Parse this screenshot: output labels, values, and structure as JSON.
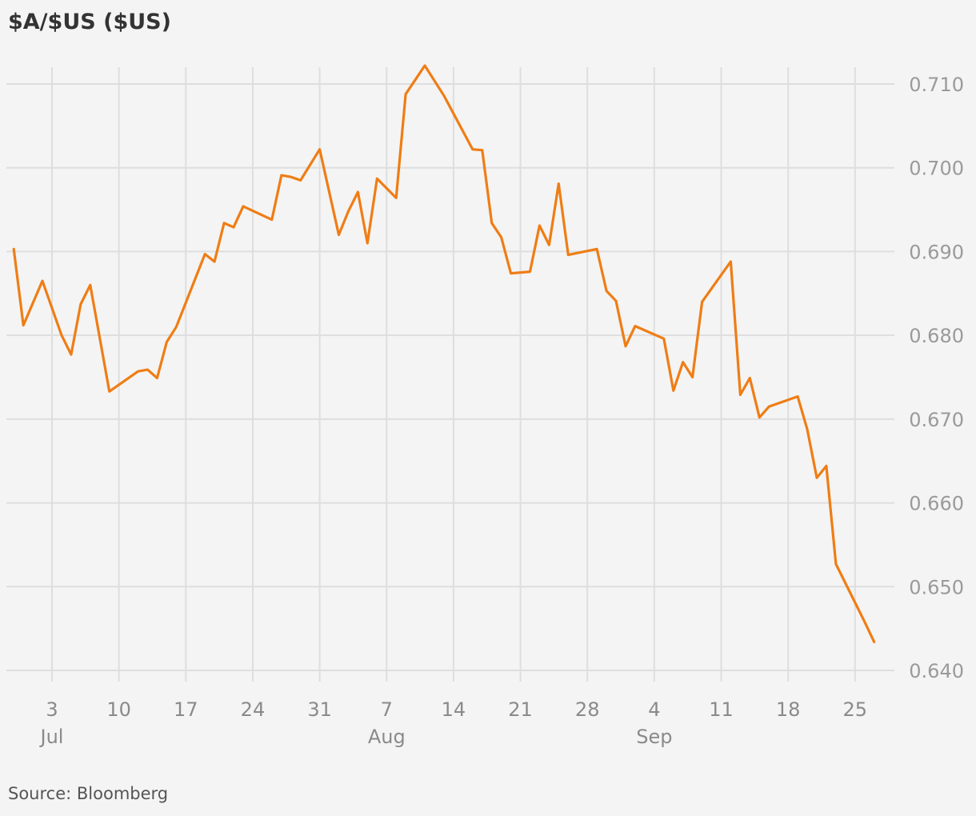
{
  "title": "$A/$US ($US)",
  "source": "Source: Bloomberg",
  "colors": {
    "line": "#ef7d15",
    "grid": "#dedede",
    "background": "#f4f4f4"
  },
  "chart_data": {
    "type": "line",
    "title": "$A/$US ($US)",
    "xlabel": "",
    "ylabel": "",
    "grid": true,
    "ylim": [
      0.638,
      0.712
    ],
    "xlim": [
      "2018-06-29",
      "2018-09-27"
    ],
    "y_ticks": [
      {
        "value": 0.64,
        "label": "0.640"
      },
      {
        "value": 0.65,
        "label": "0.650"
      },
      {
        "value": 0.66,
        "label": "0.660"
      },
      {
        "value": 0.67,
        "label": "0.670"
      },
      {
        "value": 0.68,
        "label": "0.680"
      },
      {
        "value": 0.69,
        "label": "0.690"
      },
      {
        "value": 0.7,
        "label": "0.700"
      },
      {
        "value": 0.71,
        "label": "0.710"
      }
    ],
    "x_ticks": [
      {
        "date": "2018-07-03",
        "label": "3",
        "month": "Jul"
      },
      {
        "date": "2018-07-10",
        "label": "10"
      },
      {
        "date": "2018-07-17",
        "label": "17"
      },
      {
        "date": "2018-07-24",
        "label": "24"
      },
      {
        "date": "2018-07-31",
        "label": "31"
      },
      {
        "date": "2018-08-07",
        "label": "7",
        "month": "Aug"
      },
      {
        "date": "2018-08-14",
        "label": "14"
      },
      {
        "date": "2018-08-21",
        "label": "21"
      },
      {
        "date": "2018-08-28",
        "label": "28"
      },
      {
        "date": "2018-09-04",
        "label": "4",
        "month": "Sep"
      },
      {
        "date": "2018-09-11",
        "label": "11"
      },
      {
        "date": "2018-09-18",
        "label": "18"
      },
      {
        "date": "2018-09-25",
        "label": "25"
      }
    ],
    "series": [
      {
        "x": [
          "2018-06-29",
          "2018-06-30",
          "2018-07-02",
          "2018-07-04",
          "2018-07-05",
          "2018-07-06",
          "2018-07-07",
          "2018-07-09",
          "2018-07-12",
          "2018-07-13",
          "2018-07-14",
          "2018-07-15",
          "2018-07-16",
          "2018-07-19",
          "2018-07-20",
          "2018-07-21",
          "2018-07-22",
          "2018-07-23",
          "2018-07-26",
          "2018-07-27",
          "2018-07-28",
          "2018-07-29",
          "2018-07-31",
          "2018-08-02",
          "2018-08-03",
          "2018-08-04",
          "2018-08-05",
          "2018-08-06",
          "2018-08-08",
          "2018-08-09",
          "2018-08-10",
          "2018-08-11",
          "2018-08-12",
          "2018-08-13",
          "2018-08-16",
          "2018-08-17",
          "2018-08-18",
          "2018-08-19",
          "2018-08-20",
          "2018-08-22",
          "2018-08-23",
          "2018-08-24",
          "2018-08-25",
          "2018-08-26",
          "2018-08-29",
          "2018-08-30",
          "2018-08-31",
          "2018-09-01",
          "2018-09-02",
          "2018-09-05",
          "2018-09-06",
          "2018-09-07",
          "2018-09-08",
          "2018-09-09",
          "2018-09-12",
          "2018-09-13",
          "2018-09-14",
          "2018-09-15",
          "2018-09-16",
          "2018-09-19",
          "2018-09-20",
          "2018-09-21",
          "2018-09-22",
          "2018-09-23",
          "2018-09-26",
          "2018-09-27"
        ],
        "y": [
          0.6903,
          0.6812,
          0.6865,
          0.68,
          0.6777,
          0.6837,
          0.686,
          0.6733,
          0.6757,
          0.6759,
          0.6749,
          0.6792,
          0.681,
          0.6897,
          0.6888,
          0.6934,
          0.6929,
          0.6954,
          0.6938,
          0.6991,
          0.6989,
          0.6985,
          0.7022,
          0.692,
          0.6948,
          0.6971,
          0.691,
          0.6987,
          0.6964,
          0.7088,
          0.7105,
          0.7122,
          0.7104,
          0.7086,
          0.7022,
          0.7021,
          0.6934,
          0.6917,
          0.6874,
          0.6876,
          0.6931,
          0.6908,
          0.6981,
          0.6896,
          0.6903,
          0.6853,
          0.6841,
          0.6787,
          0.6811,
          0.6796,
          0.6734,
          0.6768,
          0.675,
          0.684,
          0.6888,
          0.6729,
          0.6749,
          0.6702,
          0.6715,
          0.6727,
          0.6688,
          0.663,
          0.6644,
          0.6527,
          0.6458,
          0.6434
        ]
      }
    ]
  }
}
